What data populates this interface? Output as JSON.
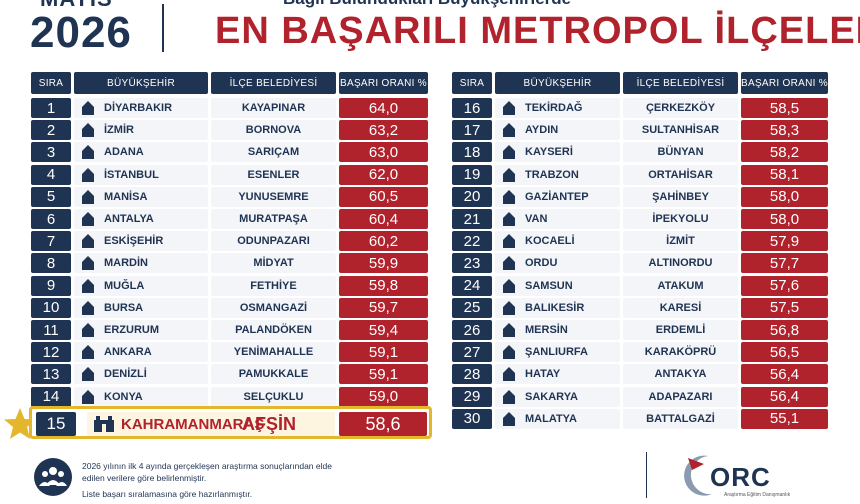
{
  "header": {
    "month": "MAYIS",
    "year": "2026",
    "subtitle": "Bağlı Bulundukları Büyükşehirlerde",
    "title": "EN BAŞARILI METROPOL İLÇELER"
  },
  "columns": {
    "rank": "SIRA",
    "city": "BÜYÜKŞEHİR",
    "district": "İLÇE BELEDİYESİ",
    "rate": "BAŞARI ORANI %"
  },
  "left_rows": [
    {
      "rank": "1",
      "city": "DİYARBAKIR",
      "district": "KAYAPINAR",
      "rate": "64,0"
    },
    {
      "rank": "2",
      "city": "İZMİR",
      "district": "BORNOVA",
      "rate": "63,2"
    },
    {
      "rank": "3",
      "city": "ADANA",
      "district": "SARIÇAM",
      "rate": "63,0"
    },
    {
      "rank": "4",
      "city": "İSTANBUL",
      "district": "ESENLER",
      "rate": "62,0"
    },
    {
      "rank": "5",
      "city": "MANİSA",
      "district": "YUNUSEMRE",
      "rate": "60,5"
    },
    {
      "rank": "6",
      "city": "ANTALYA",
      "district": "MURATPAŞA",
      "rate": "60,4"
    },
    {
      "rank": "7",
      "city": "ESKİŞEHİR",
      "district": "ODUNPAZARI",
      "rate": "60,2"
    },
    {
      "rank": "8",
      "city": "MARDİN",
      "district": "MİDYAT",
      "rate": "59,9"
    },
    {
      "rank": "9",
      "city": "MUĞLA",
      "district": "FETHİYE",
      "rate": "59,8"
    },
    {
      "rank": "10",
      "city": "BURSA",
      "district": "OSMANGAZİ",
      "rate": "59,7"
    },
    {
      "rank": "11",
      "city": "ERZURUM",
      "district": "PALANDÖKEN",
      "rate": "59,4"
    },
    {
      "rank": "12",
      "city": "ANKARA",
      "district": "YENİMAHALLE",
      "rate": "59,1"
    },
    {
      "rank": "13",
      "city": "DENİZLİ",
      "district": "PAMUKKALE",
      "rate": "59,1"
    },
    {
      "rank": "14",
      "city": "KONYA",
      "district": "SELÇUKLU",
      "rate": "59,0"
    }
  ],
  "highlight": {
    "rank": "15",
    "city": "KAHRAMANMARAŞ",
    "district": "AFŞİN",
    "rate": "58,6"
  },
  "right_rows": [
    {
      "rank": "16",
      "city": "TEKİRDAĞ",
      "district": "ÇERKEZKÖY",
      "rate": "58,5"
    },
    {
      "rank": "17",
      "city": "AYDIN",
      "district": "SULTANHİSAR",
      "rate": "58,3"
    },
    {
      "rank": "18",
      "city": "KAYSERİ",
      "district": "BÜNYAN",
      "rate": "58,2"
    },
    {
      "rank": "19",
      "city": "TRABZON",
      "district": "ORTAHİSAR",
      "rate": "58,1"
    },
    {
      "rank": "20",
      "city": "GAZİANTEP",
      "district": "ŞAHİNBEY",
      "rate": "58,0"
    },
    {
      "rank": "21",
      "city": "VAN",
      "district": "İPEKYOLU",
      "rate": "58,0"
    },
    {
      "rank": "22",
      "city": "KOCAELİ",
      "district": "İZMİT",
      "rate": "57,9"
    },
    {
      "rank": "23",
      "city": "ORDU",
      "district": "ALTINORDU",
      "rate": "57,7"
    },
    {
      "rank": "24",
      "city": "SAMSUN",
      "district": "ATAKUM",
      "rate": "57,6"
    },
    {
      "rank": "25",
      "city": "BALIKESİR",
      "district": "KARESİ",
      "rate": "57,5"
    },
    {
      "rank": "26",
      "city": "MERSİN",
      "district": "ERDEMLİ",
      "rate": "56,8"
    },
    {
      "rank": "27",
      "city": "ŞANLIURFA",
      "district": "KARAKÖPRÜ",
      "rate": "56,5"
    },
    {
      "rank": "28",
      "city": "HATAY",
      "district": "ANTAKYA",
      "rate": "56,4"
    },
    {
      "rank": "29",
      "city": "SAKARYA",
      "district": "ADAPAZARI",
      "rate": "56,4"
    },
    {
      "rank": "30",
      "city": "MALATYA",
      "district": "BATTALGAZİ",
      "rate": "55,1"
    }
  ],
  "footer": {
    "note": "2026 yılının ilk 4 ayında gerçekleşen araştırma sonuçlarından elde edilen verilere göre belirlenmiştir.",
    "note2": "Liste başarı sıralamasına göre hazırlanmıştır.",
    "logo_text": "ORC",
    "logo_sub": "Araştırma Eğitim Danışmanlık"
  },
  "colors": {
    "navy": "#1f3352",
    "red": "#b0222c",
    "gold": "#e3b62b"
  },
  "icons": {
    "city": "landmark-icon",
    "people": "people-icon",
    "star": "star-icon"
  }
}
